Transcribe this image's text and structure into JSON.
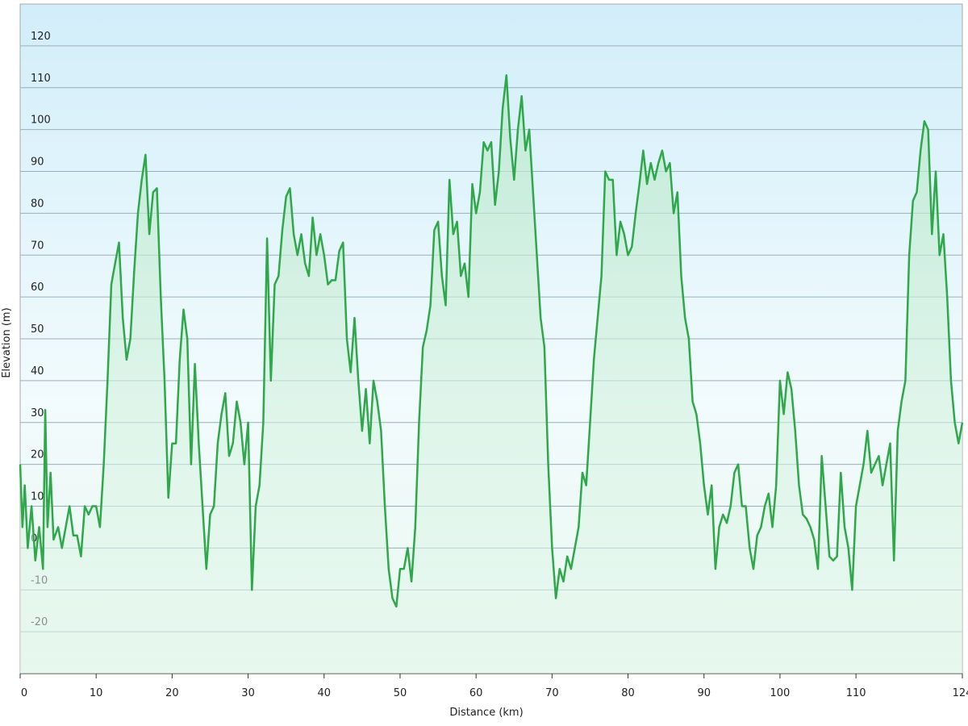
{
  "chart_data": {
    "type": "line",
    "x_label": "Distance  (km)",
    "y_label": "Elevation (m)",
    "xlim": [
      0,
      124
    ],
    "xticks": [
      0,
      10,
      20,
      30,
      40,
      50,
      60,
      70,
      80,
      90,
      100,
      110,
      124
    ],
    "ylim": [
      -30,
      130
    ],
    "yticks": [
      -20,
      -10,
      0,
      10,
      20,
      30,
      40,
      50,
      60,
      70,
      80,
      90,
      100,
      110,
      120
    ],
    "grid": true,
    "color": "#2ea84a",
    "x": [
      0,
      0.3,
      0.6,
      1,
      1.5,
      2,
      2.5,
      3,
      3.3,
      3.6,
      4,
      4.4,
      5,
      5.5,
      6,
      6.5,
      7,
      7.5,
      8,
      8.5,
      9,
      9.5,
      10,
      10.5,
      11,
      11.5,
      12,
      12.5,
      13,
      13.5,
      14,
      14.5,
      15,
      15.5,
      16,
      16.5,
      17,
      17.5,
      18,
      18.5,
      19,
      19.5,
      20,
      20.5,
      21,
      21.5,
      22,
      22.5,
      23,
      23.5,
      24,
      24.5,
      25,
      25.5,
      26,
      26.5,
      27,
      27.5,
      28,
      28.5,
      29,
      29.5,
      30,
      30.5,
      31,
      31.5,
      32,
      32.5,
      33,
      33.5,
      34,
      34.5,
      35,
      35.5,
      36,
      36.5,
      37,
      37.5,
      38,
      38.5,
      39,
      39.5,
      40,
      40.5,
      41,
      41.5,
      42,
      42.5,
      43,
      43.5,
      44,
      44.5,
      45,
      45.5,
      46,
      46.5,
      47,
      47.5,
      48,
      48.5,
      49,
      49.5,
      50,
      50.5,
      51,
      51.5,
      52,
      52.5,
      53,
      53.5,
      54,
      54.5,
      55,
      55.5,
      56,
      56.5,
      57,
      57.5,
      58,
      58.5,
      59,
      59.5,
      60,
      60.5,
      61,
      61.5,
      62,
      62.5,
      63,
      63.5,
      64,
      64.5,
      65,
      65.5,
      66,
      66.5,
      67,
      67.5,
      68,
      68.5,
      69,
      69.5,
      70,
      70.5,
      71,
      71.5,
      72,
      72.5,
      73,
      73.5,
      74,
      74.5,
      75,
      75.5,
      76,
      76.5,
      77,
      77.5,
      78,
      78.5,
      79,
      79.5,
      80,
      80.5,
      81,
      81.5,
      82,
      82.5,
      83,
      83.5,
      84,
      84.5,
      85,
      85.5,
      86,
      86.5,
      87,
      87.5,
      88,
      88.5,
      89,
      89.5,
      90,
      90.5,
      91,
      91.5,
      92,
      92.5,
      93,
      93.5,
      94,
      94.5,
      95,
      95.5,
      96,
      96.5,
      97,
      97.5,
      98,
      98.5,
      99,
      99.5,
      100,
      100.5,
      101,
      101.5,
      102,
      102.5,
      103,
      103.5,
      104,
      104.5,
      105,
      105.5,
      106,
      106.5,
      107,
      107.5,
      108,
      108.5,
      109,
      109.5,
      110,
      110.5,
      111,
      111.5,
      112,
      112.5,
      113,
      113.5,
      114,
      114.5,
      115,
      115.5,
      116,
      116.5,
      117,
      117.5,
      118,
      118.5,
      119,
      119.5,
      120,
      120.5,
      121,
      121.5,
      122,
      122.5,
      123,
      123.5,
      124
    ],
    "values": [
      20,
      5,
      15,
      0,
      10,
      -3,
      5,
      -5,
      33,
      5,
      18,
      2,
      5,
      0,
      5,
      10,
      3,
      3,
      -2,
      10,
      8,
      10,
      10,
      5,
      20,
      40,
      63,
      68,
      73,
      55,
      45,
      50,
      66,
      80,
      88,
      94,
      75,
      85,
      86,
      60,
      40,
      12,
      25,
      25,
      45,
      57,
      50,
      20,
      44,
      25,
      10,
      -5,
      8,
      10,
      25,
      32,
      37,
      22,
      25,
      35,
      30,
      20,
      30,
      -10,
      10,
      15,
      30,
      74,
      40,
      63,
      65,
      76,
      84,
      86,
      75,
      70,
      75,
      68,
      65,
      79,
      70,
      75,
      70,
      63,
      64,
      64,
      71,
      73,
      50,
      42,
      55,
      40,
      28,
      38,
      25,
      40,
      35,
      28,
      10,
      -5,
      -12,
      -14,
      -5,
      -5,
      0,
      -8,
      5,
      30,
      48,
      52,
      58,
      76,
      78,
      65,
      58,
      88,
      75,
      78,
      65,
      68,
      60,
      87,
      80,
      85,
      97,
      95,
      97,
      82,
      90,
      105,
      113,
      98,
      88,
      100,
      108,
      95,
      100,
      85,
      70,
      55,
      48,
      20,
      0,
      -12,
      -5,
      -8,
      -2,
      -5,
      0,
      5,
      18,
      15,
      30,
      45,
      55,
      65,
      90,
      88,
      88,
      70,
      78,
      75,
      70,
      72,
      80,
      87,
      95,
      87,
      92,
      88,
      92,
      95,
      90,
      92,
      80,
      85,
      65,
      55,
      50,
      35,
      32,
      25,
      15,
      8,
      15,
      -5,
      5,
      8,
      6,
      10,
      18,
      20,
      10,
      10,
      0,
      -5,
      3,
      5,
      10,
      13,
      5,
      15,
      40,
      32,
      42,
      38,
      28,
      15,
      8,
      7,
      5,
      2,
      -5,
      22,
      10,
      -2,
      -3,
      -2,
      18,
      5,
      0,
      -10,
      10,
      15,
      20,
      28,
      18,
      20,
      22,
      15,
      20,
      25,
      -3,
      28,
      35,
      40,
      70,
      83,
      85,
      95,
      102,
      100,
      75,
      90,
      70,
      75,
      60,
      40,
      30,
      25,
      30
    ]
  }
}
